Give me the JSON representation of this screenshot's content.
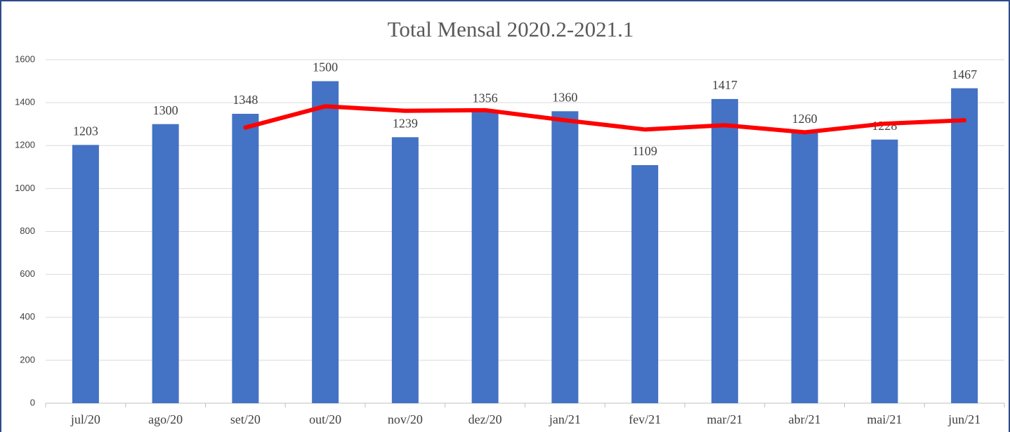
{
  "chart_data": {
    "type": "bar",
    "title": "Total Mensal 2020.2-2021.1",
    "categories": [
      "jul/20",
      "ago/20",
      "set/20",
      "out/20",
      "nov/20",
      "dez/20",
      "jan/21",
      "fev/21",
      "mar/21",
      "abr/21",
      "mai/21",
      "jun/21"
    ],
    "series": [
      {
        "type": "bar",
        "color": "#4472c4",
        "values": [
          1203,
          1300,
          1348,
          1500,
          1239,
          1356,
          1360,
          1109,
          1417,
          1260,
          1228,
          1467
        ]
      },
      {
        "type": "line",
        "color": "#ff0000",
        "values": [
          null,
          null,
          1284,
          1383,
          1362,
          1365,
          1318,
          1275,
          1295,
          1262,
          1302,
          1318
        ]
      }
    ],
    "ylim": [
      0,
      1600
    ],
    "yticks": [
      0,
      200,
      400,
      600,
      800,
      1000,
      1200,
      1400,
      1600
    ],
    "grid": true
  }
}
